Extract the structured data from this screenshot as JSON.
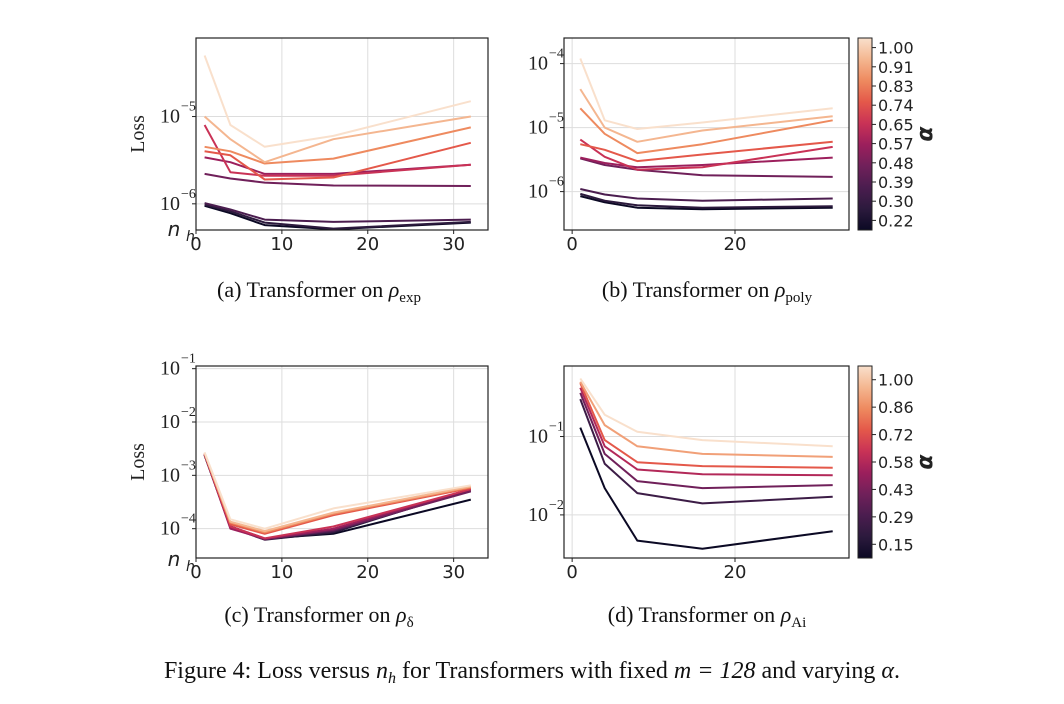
{
  "figure_caption": {
    "prefix": "Figure 4: Loss versus ",
    "var": "n",
    "var_sub": "h",
    "mid": " for Transformers with fixed ",
    "m_eq": "m = 128",
    "suffix": " and varying ",
    "alpha": "α",
    "end": "."
  },
  "colors": {
    "ramp": [
      "#0b0924",
      "#2c1a3d",
      "#4b1d4f",
      "#70205a",
      "#9c1f5c",
      "#c93256",
      "#e4584a",
      "#ee8a5f",
      "#f4b690",
      "#f9e0cc"
    ],
    "grid": "#dddddd",
    "frame": "#222222"
  },
  "chart_data": [
    {
      "id": "a",
      "type": "line",
      "title_prefix": "(a) Transformer on ",
      "title_sym": "ρ",
      "title_sub": "exp",
      "ylabel": "Loss",
      "xlabel": "n",
      "xlabel_sub": "h",
      "yscale": "log",
      "ylim_log10": [
        -6.3,
        -4.1
      ],
      "xlim": [
        0,
        34
      ],
      "xticks": [
        0,
        10,
        20,
        30
      ],
      "yticks": [
        {
          "base": "10",
          "exp": "−6",
          "log": -6
        },
        {
          "base": "10",
          "exp": "−5",
          "log": -5
        }
      ],
      "x": [
        1,
        4,
        8,
        16,
        32
      ],
      "series": [
        {
          "alpha": 0.22,
          "values": [
            9.5e-07,
            7.8e-07,
            5.7e-07,
            5.1e-07,
            6.1e-07
          ]
        },
        {
          "alpha": 0.3,
          "values": [
            9.8e-07,
            8.2e-07,
            6.1e-07,
            5.2e-07,
            6.2e-07
          ]
        },
        {
          "alpha": 0.39,
          "values": [
            1.02e-06,
            8.6e-07,
            6.6e-07,
            6.2e-07,
            6.6e-07
          ]
        },
        {
          "alpha": 0.48,
          "values": [
            2.2e-06,
            1.95e-06,
            1.75e-06,
            1.62e-06,
            1.6e-06
          ]
        },
        {
          "alpha": 0.57,
          "values": [
            3.4e-06,
            3e-06,
            2.2e-06,
            2.2e-06,
            2.8e-06
          ]
        },
        {
          "alpha": 0.65,
          "values": [
            8e-06,
            2.3e-06,
            2.1e-06,
            2.1e-06,
            2.8e-06
          ]
        },
        {
          "alpha": 0.74,
          "values": [
            4e-06,
            3.6e-06,
            1.9e-06,
            2e-06,
            5e-06
          ]
        },
        {
          "alpha": 0.83,
          "values": [
            4.5e-06,
            4e-06,
            2.9e-06,
            3.3e-06,
            7.5e-06
          ]
        },
        {
          "alpha": 0.91,
          "values": [
            1e-05,
            5.5e-06,
            3e-06,
            5.5e-06,
            1e-05
          ]
        },
        {
          "alpha": 1.0,
          "values": [
            5e-05,
            8e-06,
            4.5e-06,
            6e-06,
            1.5e-05
          ]
        }
      ]
    },
    {
      "id": "b",
      "type": "line",
      "title_prefix": "(b) Transformer on ",
      "title_sym": "ρ",
      "title_sub": "poly",
      "ylabel": "",
      "xlabel": "",
      "yscale": "log",
      "ylim_log10": [
        -6.6,
        -3.6
      ],
      "xlim": [
        -1,
        34
      ],
      "xticks": [
        0,
        20
      ],
      "yticks": [
        {
          "base": "10",
          "exp": "−6",
          "log": -6
        },
        {
          "base": "10",
          "exp": "−5",
          "log": -5
        },
        {
          "base": "10",
          "exp": "−4",
          "log": -4
        }
      ],
      "x": [
        1,
        4,
        8,
        16,
        32
      ],
      "colorbar": {
        "label": "α",
        "ticks": [
          "0.22",
          "0.30",
          "0.39",
          "0.48",
          "0.57",
          "0.65",
          "0.74",
          "0.83",
          "0.91",
          "1.00"
        ]
      },
      "series": [
        {
          "alpha": 0.22,
          "values": [
            8.5e-07,
            6.8e-07,
            5.6e-07,
            5.3e-07,
            5.6e-07
          ]
        },
        {
          "alpha": 0.3,
          "values": [
            9.2e-07,
            7.2e-07,
            6.1e-07,
            5.6e-07,
            5.9e-07
          ]
        },
        {
          "alpha": 0.39,
          "values": [
            1.1e-06,
            9e-07,
            7.8e-07,
            7.2e-07,
            7.8e-07
          ]
        },
        {
          "alpha": 0.48,
          "values": [
            3.3e-06,
            2.6e-06,
            2.2e-06,
            1.8e-06,
            1.7e-06
          ]
        },
        {
          "alpha": 0.57,
          "values": [
            3.4e-06,
            2.8e-06,
            2.4e-06,
            2.6e-06,
            3.4e-06
          ]
        },
        {
          "alpha": 0.65,
          "values": [
            6.5e-06,
            3.5e-06,
            2.2e-06,
            2.4e-06,
            5e-06
          ]
        },
        {
          "alpha": 0.74,
          "values": [
            5.5e-06,
            4.5e-06,
            3e-06,
            3.8e-06,
            6e-06
          ]
        },
        {
          "alpha": 0.83,
          "values": [
            2e-05,
            8e-06,
            4e-06,
            5.5e-06,
            1.3e-05
          ]
        },
        {
          "alpha": 0.91,
          "values": [
            4e-05,
            1e-05,
            6e-06,
            9e-06,
            1.5e-05
          ]
        },
        {
          "alpha": 1.0,
          "values": [
            0.00012,
            1.3e-05,
            9.5e-06,
            1.2e-05,
            2e-05
          ]
        }
      ]
    },
    {
      "id": "c",
      "type": "line",
      "title_prefix": "(c) Transformer on ",
      "title_sym": "ρ",
      "title_sub": "δ",
      "ylabel": "Loss",
      "xlabel": "n",
      "xlabel_sub": "h",
      "yscale": "log",
      "ylim_log10": [
        -4.55,
        -0.95
      ],
      "xlim": [
        0,
        34
      ],
      "xticks": [
        0,
        10,
        20,
        30
      ],
      "yticks": [
        {
          "base": "10",
          "exp": "−4",
          "log": -4
        },
        {
          "base": "10",
          "exp": "−3",
          "log": -3
        },
        {
          "base": "10",
          "exp": "−2",
          "log": -2
        },
        {
          "base": "10",
          "exp": "−1",
          "log": -1
        }
      ],
      "x": [
        1,
        4,
        8,
        16,
        32
      ],
      "series": [
        {
          "alpha": 0.22,
          "values": [
            0.0024,
            0.00011,
            6.5e-05,
            8e-05,
            0.00035
          ]
        },
        {
          "alpha": 0.3,
          "values": [
            0.0024,
            0.000105,
            6.2e-05,
            8.5e-05,
            0.00055
          ]
        },
        {
          "alpha": 0.39,
          "values": [
            0.0024,
            0.00011,
            6.5e-05,
            9e-05,
            0.00052
          ]
        },
        {
          "alpha": 0.48,
          "values": [
            0.0024,
            0.000105,
            6.3e-05,
            9.5e-05,
            0.0005
          ]
        },
        {
          "alpha": 0.57,
          "values": [
            0.0025,
            0.0001,
            6.5e-05,
            0.0001,
            0.00055
          ]
        },
        {
          "alpha": 0.65,
          "values": [
            0.0025,
            0.00011,
            6.6e-05,
            0.00011,
            0.00055
          ]
        },
        {
          "alpha": 0.74,
          "values": [
            0.0025,
            0.00012,
            8e-05,
            0.00018,
            0.00058
          ]
        },
        {
          "alpha": 0.83,
          "values": [
            0.0026,
            0.00013,
            8.5e-05,
            0.00019,
            0.0006
          ]
        },
        {
          "alpha": 0.91,
          "values": [
            0.0026,
            0.000135,
            9e-05,
            0.0002,
            0.00062
          ]
        },
        {
          "alpha": 1.0,
          "values": [
            0.0027,
            0.00015,
            0.0001,
            0.00024,
            0.00065
          ]
        }
      ]
    },
    {
      "id": "d",
      "type": "line",
      "title_prefix": "(d) Transformer on ",
      "title_sym": "ρ",
      "title_sub": "Ai",
      "ylabel": "",
      "xlabel": "",
      "yscale": "log",
      "ylim_log10": [
        -2.55,
        -0.1
      ],
      "xlim": [
        -1,
        34
      ],
      "xticks": [
        0,
        20
      ],
      "yticks": [
        {
          "base": "10",
          "exp": "−2",
          "log": -2
        },
        {
          "base": "10",
          "exp": "−1",
          "log": -1
        }
      ],
      "x": [
        1,
        4,
        8,
        16,
        32
      ],
      "colorbar": {
        "label": "α",
        "ticks": [
          "0.15",
          "0.29",
          "0.43",
          "0.58",
          "0.72",
          "0.86",
          "1.00"
        ]
      },
      "series": [
        {
          "alpha": 0.15,
          "values": [
            0.13,
            0.022,
            0.0047,
            0.0037,
            0.0062
          ]
        },
        {
          "alpha": 0.29,
          "values": [
            0.3,
            0.045,
            0.019,
            0.014,
            0.017
          ]
        },
        {
          "alpha": 0.43,
          "values": [
            0.36,
            0.06,
            0.027,
            0.022,
            0.024
          ]
        },
        {
          "alpha": 0.58,
          "values": [
            0.42,
            0.075,
            0.038,
            0.033,
            0.032
          ]
        },
        {
          "alpha": 0.72,
          "values": [
            0.48,
            0.09,
            0.047,
            0.042,
            0.04
          ]
        },
        {
          "alpha": 0.86,
          "values": [
            0.5,
            0.14,
            0.075,
            0.06,
            0.055
          ]
        },
        {
          "alpha": 1.0,
          "values": [
            0.55,
            0.19,
            0.115,
            0.09,
            0.075
          ]
        }
      ]
    }
  ]
}
